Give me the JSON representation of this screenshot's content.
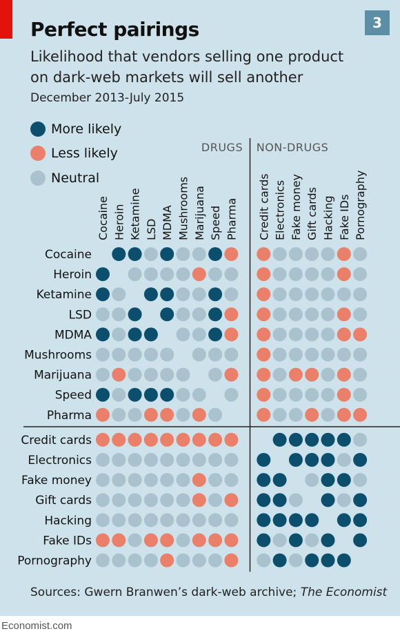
{
  "header": {
    "title": "Perfect pairings",
    "badge": "3",
    "subtitle_line1": "Likelihood that vendors selling one product",
    "subtitle_line2": "on dark-web markets will sell another",
    "dates": "December 2013-July 2015"
  },
  "legend": [
    {
      "label": "More likely",
      "color": "#0b4f6c"
    },
    {
      "label": "Less likely",
      "color": "#ea8069"
    },
    {
      "label": "Neutral",
      "color": "#a9c2cd"
    }
  ],
  "groups": {
    "drugs": "DRUGS",
    "non_drugs": "NON-DRUGS"
  },
  "source": {
    "prefix": "Sources: Gwern Branwen’s dark-web archive; ",
    "italic": "The Economist"
  },
  "footer": "Economist.com",
  "chart_data": {
    "type": "heatmap",
    "columns": [
      "Cocaine",
      "Heroin",
      "Ketamine",
      "LSD",
      "MDMA",
      "Mushrooms",
      "Marijuana",
      "Speed",
      "Pharma",
      "Credit cards",
      "Electronics",
      "Fake money",
      "Gift cards",
      "Hacking",
      "Fake IDs",
      "Pornography"
    ],
    "rows": [
      "Cocaine",
      "Heroin",
      "Ketamine",
      "LSD",
      "MDMA",
      "Mushrooms",
      "Marijuana",
      "Speed",
      "Pharma",
      "Credit cards",
      "Electronics",
      "Fake money",
      "Gift cards",
      "Hacking",
      "Fake IDs",
      "Pornography"
    ],
    "legend": {
      "M": "More likely",
      "L": "Less likely",
      "N": "Neutral"
    },
    "colors": {
      "M": "#0b4f6c",
      "L": "#ea8069",
      "N": "#a9c2cd"
    },
    "values": [
      [
        "",
        "M",
        "M",
        "N",
        "M",
        "N",
        "N",
        "M",
        "L",
        "L",
        "N",
        "N",
        "N",
        "N",
        "L",
        "N"
      ],
      [
        "M",
        "",
        "N",
        "N",
        "N",
        "N",
        "L",
        "N",
        "N",
        "L",
        "N",
        "N",
        "N",
        "N",
        "L",
        "N"
      ],
      [
        "M",
        "N",
        "",
        "M",
        "M",
        "N",
        "N",
        "M",
        "N",
        "L",
        "N",
        "N",
        "N",
        "N",
        "N",
        "N"
      ],
      [
        "N",
        "N",
        "M",
        "",
        "M",
        "N",
        "N",
        "M",
        "L",
        "L",
        "N",
        "N",
        "N",
        "N",
        "L",
        "N"
      ],
      [
        "M",
        "N",
        "M",
        "M",
        "",
        "N",
        "N",
        "M",
        "L",
        "L",
        "N",
        "N",
        "N",
        "N",
        "L",
        "L"
      ],
      [
        "N",
        "N",
        "N",
        "N",
        "N",
        "",
        "N",
        "N",
        "N",
        "L",
        "N",
        "N",
        "N",
        "N",
        "N",
        "N"
      ],
      [
        "N",
        "L",
        "N",
        "N",
        "N",
        "N",
        "",
        "N",
        "L",
        "L",
        "N",
        "L",
        "L",
        "N",
        "L",
        "N"
      ],
      [
        "M",
        "N",
        "M",
        "M",
        "M",
        "N",
        "N",
        "",
        "N",
        "L",
        "N",
        "N",
        "N",
        "N",
        "L",
        "N"
      ],
      [
        "L",
        "N",
        "N",
        "L",
        "L",
        "N",
        "L",
        "N",
        "",
        "L",
        "N",
        "N",
        "L",
        "N",
        "L",
        "L"
      ],
      [
        "L",
        "L",
        "L",
        "L",
        "L",
        "L",
        "L",
        "L",
        "L",
        "",
        "M",
        "M",
        "M",
        "M",
        "M",
        "N"
      ],
      [
        "N",
        "N",
        "N",
        "N",
        "N",
        "N",
        "N",
        "N",
        "N",
        "M",
        "",
        "M",
        "M",
        "M",
        "N",
        "M"
      ],
      [
        "N",
        "N",
        "N",
        "N",
        "N",
        "N",
        "L",
        "N",
        "N",
        "M",
        "M",
        "",
        "N",
        "M",
        "M",
        "N"
      ],
      [
        "N",
        "N",
        "N",
        "N",
        "N",
        "N",
        "L",
        "N",
        "L",
        "M",
        "M",
        "N",
        "",
        "M",
        "N",
        "M"
      ],
      [
        "N",
        "N",
        "N",
        "N",
        "N",
        "N",
        "N",
        "N",
        "N",
        "M",
        "M",
        "M",
        "M",
        "",
        "M",
        "M"
      ],
      [
        "L",
        "L",
        "N",
        "L",
        "L",
        "N",
        "L",
        "L",
        "L",
        "M",
        "N",
        "M",
        "N",
        "M",
        "",
        "M"
      ],
      [
        "N",
        "N",
        "N",
        "N",
        "L",
        "N",
        "N",
        "N",
        "L",
        "N",
        "M",
        "N",
        "M",
        "M",
        "M",
        ""
      ]
    ]
  }
}
